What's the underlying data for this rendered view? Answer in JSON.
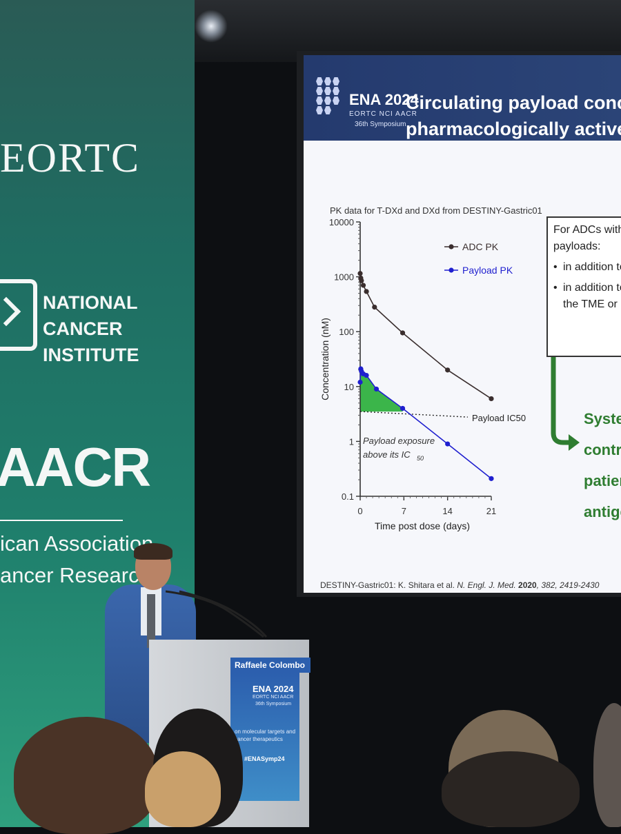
{
  "banner": {
    "eortc": "EORTC",
    "nci_lines": [
      "NATIONAL",
      "CANCER",
      "INSTITUTE"
    ],
    "aacr": "AACR",
    "aacr_lines": [
      "ican Association",
      "ancer Research"
    ]
  },
  "slide": {
    "ena_title": "ENA 2024",
    "ena_orgs": "EORTC NCI AACR",
    "ena_symposium": "36th Symposium",
    "title_lines": [
      "Circulating payload concentration",
      "pharmacologically active levels in"
    ],
    "pk_caption": "PK data for T-DXd and DXd from DESTINY-Gastric01",
    "box": {
      "lines": [
        "For ADCs with bys",
        "payloads:"
      ],
      "bullets": [
        "in addition to",
        "in addition to",
        "the TME or in"
      ]
    },
    "conclusion_lines": [
      "System",
      "contrib",
      "patient",
      "antiger"
    ],
    "reference": {
      "prefix": "DESTINY-Gastric01: K. Shitara et al. ",
      "journal": "N. Engl. J. Med.",
      "year": " 2020",
      "rest": ", 382, 2419-2430"
    }
  },
  "chart_data": {
    "type": "line",
    "ylabel": "Concentration (nM)",
    "xlabel": "Time post dose (days)",
    "y_scale": "log",
    "ylim": [
      0.1,
      10000
    ],
    "xlim": [
      0,
      21
    ],
    "y_ticks": [
      "0.1",
      "1",
      "10",
      "100",
      "1000",
      "10000"
    ],
    "x_ticks": [
      "0",
      "7",
      "14",
      "21"
    ],
    "series": [
      {
        "name": "ADC PK",
        "color": "#3a2e2e",
        "points": [
          [
            0,
            1150
          ],
          [
            0.1,
            950
          ],
          [
            0.2,
            850
          ],
          [
            0.5,
            700
          ],
          [
            1,
            540
          ],
          [
            2.3,
            280
          ],
          [
            6.8,
            95
          ],
          [
            14,
            20
          ],
          [
            21,
            6
          ]
        ]
      },
      {
        "name": "Payload PK",
        "color": "#1f1fcf",
        "points": [
          [
            0,
            12
          ],
          [
            0.1,
            21
          ],
          [
            0.2,
            19
          ],
          [
            0.5,
            17
          ],
          [
            1,
            16
          ],
          [
            2.6,
            9
          ],
          [
            6.8,
            4
          ],
          [
            14,
            0.9
          ],
          [
            21,
            0.21
          ]
        ]
      }
    ],
    "threshold": {
      "label": "Payload IC50",
      "value": 3.5
    },
    "annotation": {
      "line1": "Payload exposure",
      "line2_prefix": "above its IC",
      "line2_sub": "50"
    },
    "legend_position": "top-right",
    "grid": false
  },
  "podium": {
    "name": "Raffaele Colombo",
    "ena_title": "ENA 2024",
    "orgs": "EORTC NCI AACR",
    "symposium": "36th Symposium",
    "tag_lines": [
      "on molecular targets and",
      "cancer therapeutics"
    ],
    "hashtag": "#ENASymp24"
  }
}
